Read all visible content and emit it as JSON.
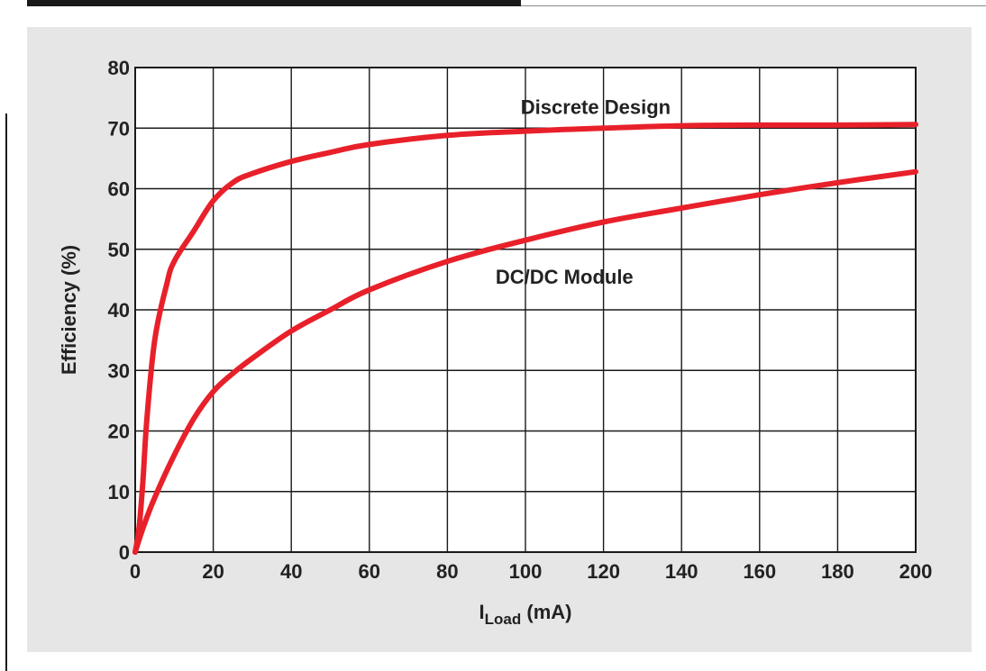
{
  "chart_data": {
    "type": "line",
    "title": "",
    "xlabel_main": "I",
    "xlabel_sub": "Load",
    "xlabel_unit": " (mA)",
    "ylabel": "Efficiency (%)",
    "xlim": [
      0,
      200
    ],
    "ylim": [
      0,
      80
    ],
    "x_ticks": [
      0,
      20,
      40,
      60,
      80,
      100,
      120,
      140,
      160,
      180,
      200
    ],
    "y_ticks": [
      0,
      10,
      20,
      30,
      40,
      50,
      60,
      70,
      80
    ],
    "grid": true,
    "legend": "none",
    "series": [
      {
        "name": "Discrete Design",
        "color": "#e8202a",
        "x": [
          0,
          1,
          2,
          3,
          5,
          8,
          10,
          15,
          20,
          25,
          30,
          40,
          50,
          60,
          80,
          100,
          120,
          140,
          160,
          180,
          200
        ],
        "y": [
          0,
          4,
          12,
          22,
          35,
          44,
          48,
          53,
          58,
          61,
          62.5,
          64.5,
          66,
          67.3,
          68.8,
          69.5,
          70,
          70.4,
          70.5,
          70.5,
          70.6
        ]
      },
      {
        "name": "DC/DC Module",
        "color": "#e8202a",
        "x": [
          0,
          2,
          5,
          10,
          15,
          20,
          25,
          30,
          40,
          50,
          60,
          80,
          100,
          120,
          140,
          160,
          180,
          200
        ],
        "y": [
          0,
          4,
          9,
          16,
          22,
          26.5,
          29.5,
          32,
          36.5,
          40,
          43.3,
          48,
          51.5,
          54.5,
          56.8,
          59,
          61,
          62.8
        ]
      }
    ],
    "annotations": [
      {
        "text": "Discrete Design",
        "x": 118,
        "y": 73.5
      },
      {
        "text": "DC/DC Module",
        "x": 110,
        "y": 45.5
      }
    ]
  }
}
